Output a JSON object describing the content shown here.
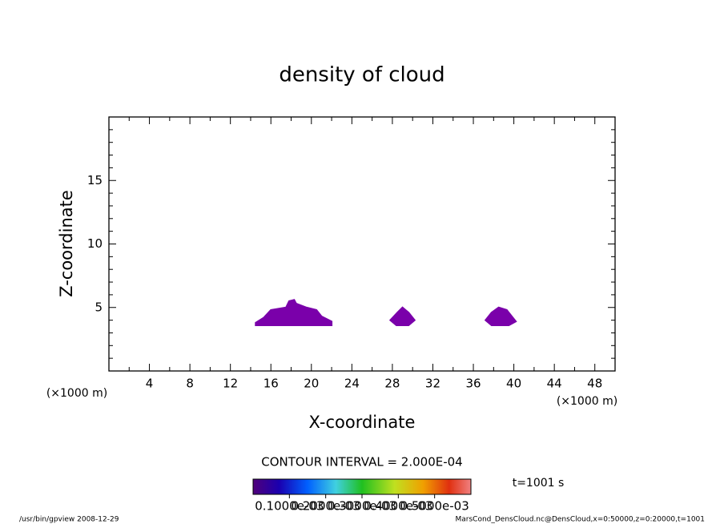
{
  "chart_data": {
    "type": "contour",
    "title": "density of cloud",
    "x_label": "X-coordinate",
    "y_label": "Z-coordinate",
    "x_unit_left": "(×1000 m)",
    "x_unit_right": "(×1000 m)",
    "xlim": [
      0,
      50
    ],
    "ylim": [
      0,
      20
    ],
    "xticks": [
      4,
      8,
      12,
      16,
      20,
      24,
      28,
      32,
      36,
      40,
      44,
      48
    ],
    "yticks": [
      5,
      10,
      15
    ],
    "xminorticks": [
      2,
      6,
      10,
      14,
      18,
      22,
      26,
      30,
      34,
      38,
      42,
      46,
      50
    ],
    "yminorticks": [
      1,
      2,
      3,
      4,
      6,
      7,
      8,
      9,
      11,
      12,
      13,
      14,
      16,
      17,
      18,
      19
    ],
    "color": "#7a00aa",
    "contours": [
      {
        "x": [
          14.5,
          22,
          22,
          21,
          20.5,
          19.5,
          18.5,
          18.3,
          17.8,
          17.5,
          16,
          15.3,
          14.5
        ],
        "y": [
          3.6,
          3.6,
          3.9,
          4.3,
          4.8,
          5.0,
          5.3,
          5.6,
          5.5,
          5.0,
          4.8,
          4.2,
          3.8
        ]
      },
      {
        "x": [
          27.8,
          28.5,
          29,
          29.6,
          30.2,
          29.6,
          28.4
        ],
        "y": [
          4.0,
          4.6,
          5.0,
          4.6,
          4.0,
          3.6,
          3.6
        ]
      },
      {
        "x": [
          37.2,
          37.8,
          38.5,
          39.3,
          39.8,
          40.2,
          39.5,
          37.8
        ],
        "y": [
          4.0,
          4.6,
          5.0,
          4.8,
          4.3,
          3.9,
          3.6,
          3.6
        ]
      }
    ],
    "contour_interval": "CONTOUR INTERVAL = 2.000E-04",
    "time_label": "t=1001 s",
    "clim": [
      0,
      0.0006
    ],
    "cticks": [
      {
        "value": 0.0001,
        "label": "0.1000e-03"
      },
      {
        "value": 0.0002,
        "label": "0.2000e-03"
      },
      {
        "value": 0.0003,
        "label": "0.3000e-03"
      },
      {
        "value": 0.0004,
        "label": "0.4000e-03"
      },
      {
        "value": 0.0005,
        "label": "0.5000e-03"
      }
    ],
    "footer_left": "/usr/bin/gpview   2008-12-29",
    "footer_right": "MarsCond_DensCloud.nc@DensCloud,x=0:50000,z=0:20000,t=1001"
  }
}
